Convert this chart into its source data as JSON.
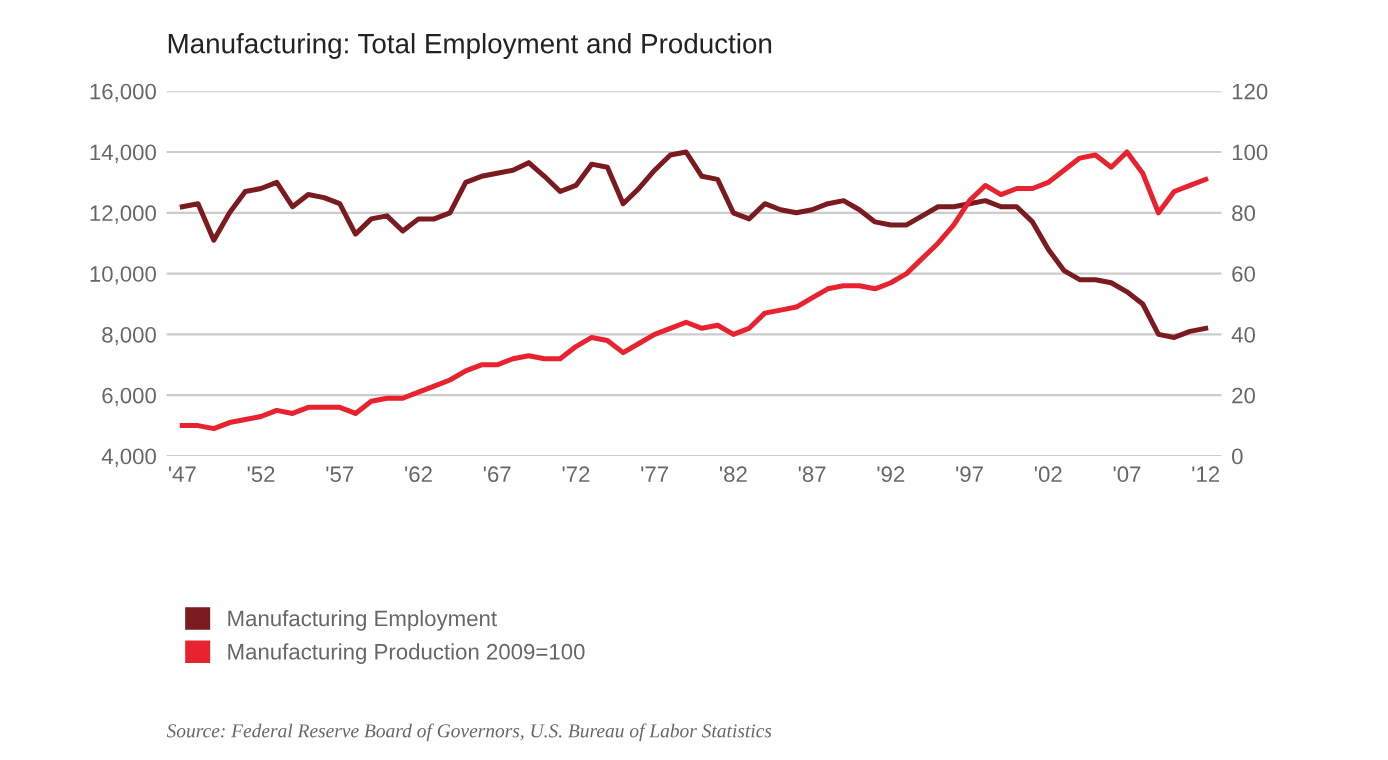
{
  "chart_data": {
    "type": "line",
    "title": "Manufacturing: Total Employment and Production",
    "x": [
      1947,
      1948,
      1949,
      1950,
      1951,
      1952,
      1953,
      1954,
      1955,
      1956,
      1957,
      1958,
      1959,
      1960,
      1961,
      1962,
      1963,
      1964,
      1965,
      1966,
      1967,
      1968,
      1969,
      1970,
      1971,
      1972,
      1973,
      1974,
      1975,
      1976,
      1977,
      1978,
      1979,
      1980,
      1981,
      1982,
      1983,
      1984,
      1985,
      1986,
      1987,
      1988,
      1989,
      1990,
      1991,
      1992,
      1993,
      1994,
      1995,
      1996,
      1997,
      1998,
      1999,
      2000,
      2001,
      2002,
      2003,
      2004,
      2005,
      2006,
      2007,
      2008,
      2009,
      2010,
      2011,
      2012
    ],
    "series": [
      {
        "name": "Manufacturing Employment",
        "color": "#7b1a1f",
        "values": [
          12200,
          12300,
          11100,
          12000,
          12700,
          12800,
          13000,
          12200,
          12600,
          12500,
          12300,
          11300,
          11800,
          11900,
          11400,
          11800,
          11800,
          12000,
          13000,
          13200,
          13300,
          13400,
          13650,
          13200,
          12700,
          12900,
          13600,
          13500,
          12300,
          12800,
          13400,
          13900,
          14000,
          13200,
          13100,
          12000,
          11800,
          12300,
          12100,
          12000,
          12100,
          12300,
          12400,
          12100,
          11700,
          11600,
          11600,
          11900,
          12200,
          12200,
          12300,
          12400,
          12200,
          12200,
          11700,
          10800,
          10100,
          9800,
          9800,
          9700,
          9400,
          9000,
          8000,
          7900,
          8100,
          8200
        ]
      },
      {
        "name": "Manufacturing Production 2009=100",
        "color": "#e8232f",
        "axis": "y2",
        "values": [
          10,
          10,
          9,
          11,
          12,
          13,
          15,
          14,
          16,
          16,
          16,
          14,
          18,
          19,
          19,
          21,
          23,
          25,
          28,
          30,
          30,
          32,
          33,
          32,
          32,
          36,
          39,
          38,
          34,
          37,
          40,
          42,
          44,
          42,
          43,
          40,
          42,
          47,
          48,
          49,
          52,
          55,
          56,
          56,
          55,
          57,
          60,
          65,
          70,
          76,
          84,
          89,
          86,
          88,
          88,
          90,
          94,
          98,
          99,
          95,
          100,
          93,
          80,
          87,
          89,
          91
        ]
      }
    ],
    "xlim": [
      1946,
      2013
    ],
    "xticks": [
      {
        "value": 1947,
        "label": "'47"
      },
      {
        "value": 1952,
        "label": "'52"
      },
      {
        "value": 1957,
        "label": "'57"
      },
      {
        "value": 1962,
        "label": "'62"
      },
      {
        "value": 1967,
        "label": "'67"
      },
      {
        "value": 1972,
        "label": "'72"
      },
      {
        "value": 1977,
        "label": "'77"
      },
      {
        "value": 1982,
        "label": "'82"
      },
      {
        "value": 1987,
        "label": "'87"
      },
      {
        "value": 1992,
        "label": "'92"
      },
      {
        "value": 1997,
        "label": "'97"
      },
      {
        "value": 2002,
        "label": "'02"
      },
      {
        "value": 2007,
        "label": "'07"
      },
      {
        "value": 2012,
        "label": "'12"
      }
    ],
    "ylim": [
      4000,
      16000
    ],
    "yticks": [
      {
        "value": 4000,
        "label": "4,000"
      },
      {
        "value": 6000,
        "label": "6,000"
      },
      {
        "value": 8000,
        "label": "8,000"
      },
      {
        "value": 10000,
        "label": "10,000"
      },
      {
        "value": 12000,
        "label": "12,000"
      },
      {
        "value": 14000,
        "label": "14,000"
      },
      {
        "value": 16000,
        "label": "16,000"
      }
    ],
    "y2lim": [
      0,
      120
    ],
    "y2ticks": [
      0,
      20,
      40,
      60,
      80,
      100,
      120
    ],
    "grid": "y",
    "legend": "bottom left",
    "annotations": [
      "Source: Federal Reserve Board of Governors, U.S. Bureau of Labor Statistics"
    ]
  }
}
